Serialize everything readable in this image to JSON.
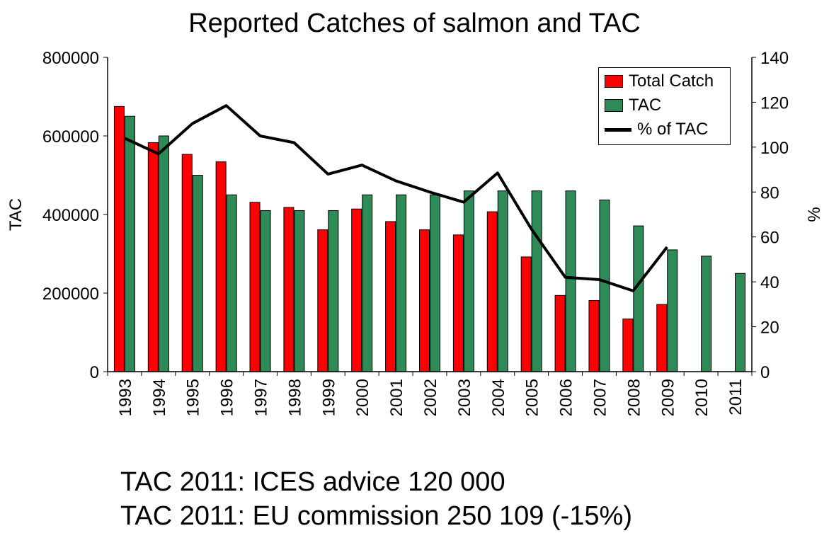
{
  "colors": {
    "total_catch": "#ff0000",
    "tac": "#2e8b57",
    "pct_line": "#000000"
  },
  "notes": [
    "TAC 2011: ICES advice 120 000",
    "TAC 2011: EU commission 250 109 (-15%)"
  ],
  "chart_data": {
    "type": "bar",
    "title": "Reported Catches of salmon and TAC",
    "xlabel": "",
    "ylabel": "TAC",
    "y2label": "%",
    "ylim": [
      0,
      800000
    ],
    "y2lim": [
      0,
      140
    ],
    "yticks": [
      "0",
      "200000",
      "400000",
      "600000",
      "800000"
    ],
    "y2ticks": [
      "0",
      "20",
      "40",
      "60",
      "80",
      "100",
      "120",
      "140"
    ],
    "grid": false,
    "legend_position": "top-right",
    "categories": [
      "1993",
      "1994",
      "1995",
      "1996",
      "1997",
      "1998",
      "1999",
      "2000",
      "2001",
      "2002",
      "2003",
      "2004",
      "2005",
      "2006",
      "2007",
      "2008",
      "2009",
      "2010",
      "2011"
    ],
    "series": [
      {
        "name": "Total Catch",
        "kind": "bar",
        "axis": "left",
        "values": [
          675000,
          583000,
          553000,
          534000,
          431000,
          418000,
          361000,
          414000,
          382000,
          361000,
          348000,
          407000,
          292000,
          194000,
          181000,
          134000,
          171000,
          null,
          null
        ]
      },
      {
        "name": "TAC",
        "kind": "bar",
        "axis": "left",
        "values": [
          650000,
          600000,
          500000,
          450000,
          410000,
          410000,
          410000,
          450000,
          450000,
          450000,
          460000,
          460000,
          460000,
          460000,
          437000,
          371000,
          310000,
          294000,
          250000
        ]
      },
      {
        "name": "% of TAC",
        "kind": "line",
        "axis": "right",
        "values": [
          104,
          97,
          110.5,
          118.5,
          105,
          102,
          88,
          92,
          85,
          80,
          75.5,
          88.5,
          63.5,
          42,
          41,
          36,
          55.5,
          null,
          null
        ]
      }
    ]
  }
}
